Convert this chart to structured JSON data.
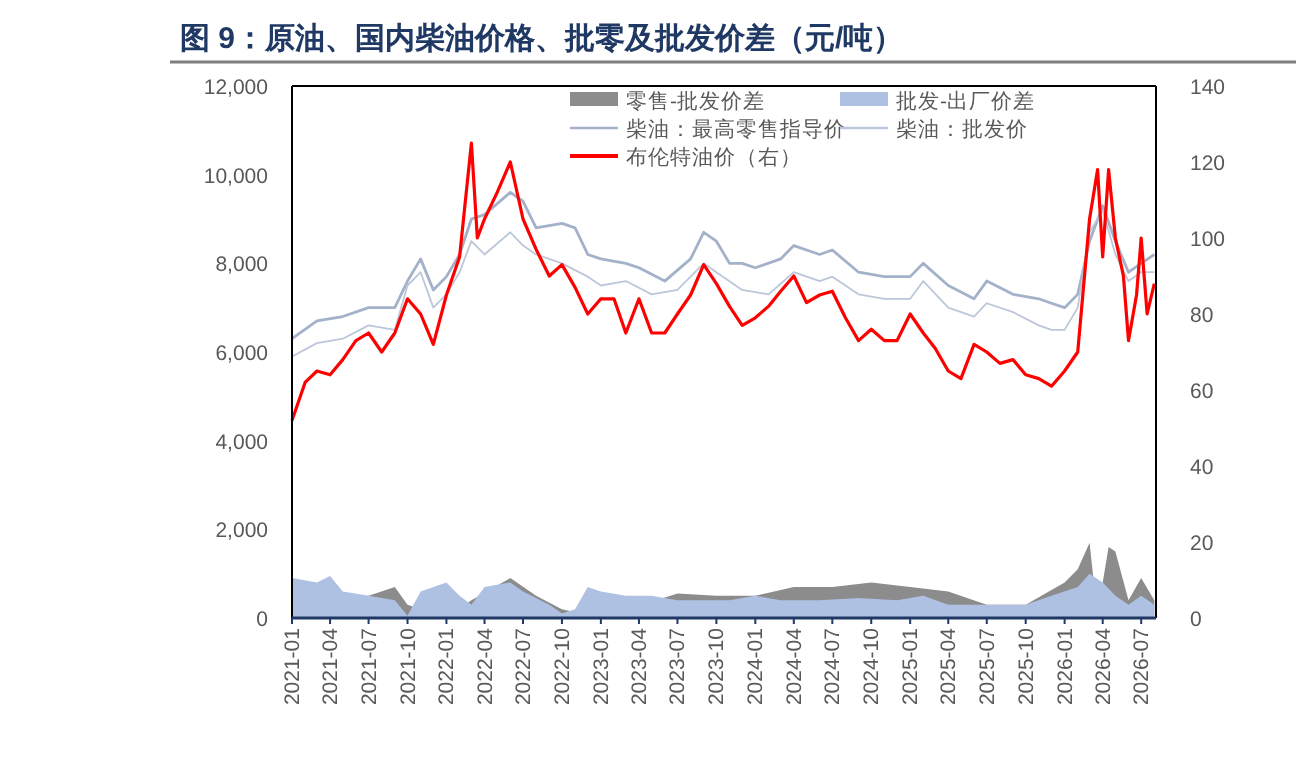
{
  "chart_data": {
    "type": "line",
    "title": "图 9：原油、国内柴油价格、批零及批发价差（元/吨）",
    "xlim": [
      "2021-01-01",
      "2026-08-05"
    ],
    "xticks": [
      "2021-01",
      "2021-04",
      "2021-07",
      "2021-10",
      "2022-01",
      "2022-04",
      "2022-07",
      "2022-10",
      "2023-01",
      "2023-04",
      "2023-07",
      "2023-10",
      "2024-01",
      "2024-04",
      "2024-07",
      "2024-10",
      "2025-01",
      "2025-04",
      "2025-07",
      "2025-10",
      "2026-01",
      "2026-04",
      "2026-07"
    ],
    "ylim": [
      0,
      12000
    ],
    "yticks": [
      {
        "value": 0,
        "label": "0"
      },
      {
        "value": 2000,
        "label": "2,000"
      },
      {
        "value": 4000,
        "label": "4,000"
      },
      {
        "value": 6000,
        "label": "6,000"
      },
      {
        "value": 8000,
        "label": "8,000"
      },
      {
        "value": 10000,
        "label": "10,000"
      },
      {
        "value": 12000,
        "label": "12,000"
      }
    ],
    "y2lim": [
      0,
      140
    ],
    "y2ticks": [
      0,
      20,
      40,
      60,
      80,
      100,
      120,
      140
    ],
    "grid": false,
    "legend": "top",
    "series": [
      {
        "name": "零售-批发价差",
        "type": "area",
        "color": "#8c8c8c",
        "x": [
          "2021-01",
          "2021-07",
          "2021-09",
          "2021-10",
          "2022-01",
          "2022-03",
          "2022-06",
          "2022-08",
          "2022-10",
          "2023-01",
          "2023-07",
          "2023-10",
          "2024-01",
          "2024-04",
          "2024-07",
          "2024-10",
          "2025-01",
          "2025-04",
          "2025-07",
          "2025-10",
          "2026-01",
          "2026-02",
          "2026-03",
          "2026-03-20",
          "2026-04",
          "2026-04-15",
          "2026-05",
          "2026-06",
          "2026-07",
          "2026-08"
        ],
        "values": [
          300,
          500,
          700,
          300,
          null,
          400,
          900,
          500,
          200,
          null,
          550,
          500,
          500,
          700,
          700,
          800,
          700,
          600,
          300,
          300,
          800,
          1100,
          1700,
          null,
          800,
          1600,
          1500,
          400,
          900,
          400
        ]
      },
      {
        "name": "批发-出厂价差",
        "type": "area",
        "color": "#aec1e3",
        "x": [
          "2021-01",
          "2021-03",
          "2021-04",
          "2021-05",
          "2021-07",
          "2021-09",
          "2021-10",
          "2021-11",
          "2022-01",
          "2022-02",
          "2022-03",
          "2022-04",
          "2022-06",
          "2022-07",
          "2022-09",
          "2022-10",
          "2022-11",
          "2022-12",
          "2023-01",
          "2023-03",
          "2023-05",
          "2023-07",
          "2023-09",
          "2023-11",
          "2024-01",
          "2024-03",
          "2024-06",
          "2024-09",
          "2024-12",
          "2025-02",
          "2025-04",
          "2025-06",
          "2025-08",
          "2025-10",
          "2025-12",
          "2026-02",
          "2026-03",
          "2026-04",
          "2026-05",
          "2026-06",
          "2026-07",
          "2026-08"
        ],
        "values": [
          900,
          800,
          950,
          600,
          500,
          400,
          50,
          600,
          800,
          500,
          300,
          700,
          800,
          600,
          300,
          100,
          200,
          700,
          600,
          500,
          500,
          400,
          400,
          400,
          500,
          400,
          400,
          450,
          400,
          500,
          300,
          300,
          300,
          300,
          500,
          700,
          1000,
          800,
          500,
          300,
          500,
          300
        ]
      },
      {
        "name": "柴油：最高零售指导价",
        "type": "line",
        "color": "#a3b1c9",
        "x": [
          "2021-01",
          "2021-03",
          "2021-05",
          "2021-07",
          "2021-09",
          "2021-10",
          "2021-11",
          "2021-12",
          "2022-01",
          "2022-02",
          "2022-03",
          "2022-04",
          "2022-06",
          "2022-07",
          "2022-08",
          "2022-10",
          "2022-11",
          "2022-12",
          "2023-01",
          "2023-03",
          "2023-04",
          "2023-06",
          "2023-08",
          "2023-09",
          "2023-10",
          "2023-11",
          "2023-12",
          "2024-01",
          "2024-03",
          "2024-04",
          "2024-06",
          "2024-07",
          "2024-09",
          "2024-11",
          "2025-01",
          "2025-02",
          "2025-04",
          "2025-06",
          "2025-07",
          "2025-09",
          "2025-11",
          "2025-12",
          "2026-01",
          "2026-02",
          "2026-03",
          "2026-04",
          "2026-05",
          "2026-06",
          "2026-07",
          "2026-08"
        ],
        "values": [
          6300,
          6700,
          6800,
          7000,
          7000,
          7600,
          8100,
          7400,
          7700,
          8200,
          9000,
          9100,
          9600,
          9400,
          8800,
          8900,
          8800,
          8200,
          8100,
          8000,
          7900,
          7600,
          8100,
          8700,
          8500,
          8000,
          8000,
          7900,
          8100,
          8400,
          8200,
          8300,
          7800,
          7700,
          7700,
          8000,
          7500,
          7200,
          7600,
          7300,
          7200,
          7100,
          7000,
          7300,
          8500,
          9300,
          8500,
          7800,
          8000,
          8200
        ]
      },
      {
        "name": "柴油：批发价",
        "type": "line",
        "color": "#bcc7da",
        "x": [
          "2021-01",
          "2021-03",
          "2021-05",
          "2021-07",
          "2021-09",
          "2021-10",
          "2021-11",
          "2021-12",
          "2022-01",
          "2022-02",
          "2022-03",
          "2022-04",
          "2022-06",
          "2022-07",
          "2022-08",
          "2022-10",
          "2022-12",
          "2023-01",
          "2023-03",
          "2023-05",
          "2023-07",
          "2023-09",
          "2023-10",
          "2023-12",
          "2024-02",
          "2024-04",
          "2024-06",
          "2024-07",
          "2024-09",
          "2024-11",
          "2025-01",
          "2025-02",
          "2025-04",
          "2025-06",
          "2025-07",
          "2025-09",
          "2025-11",
          "2025-12",
          "2026-01",
          "2026-02",
          "2026-03",
          "2026-04",
          "2026-05",
          "2026-06",
          "2026-07",
          "2026-08"
        ],
        "values": [
          5900,
          6200,
          6300,
          6600,
          6500,
          7500,
          7800,
          7000,
          7300,
          7800,
          8500,
          8200,
          8700,
          8400,
          8200,
          8000,
          7700,
          7500,
          7600,
          7300,
          7400,
          8000,
          7800,
          7400,
          7300,
          7800,
          7600,
          7700,
          7300,
          7200,
          7200,
          7600,
          7000,
          6800,
          7100,
          6900,
          6600,
          6500,
          6500,
          7000,
          8700,
          9200,
          8200,
          7600,
          7800,
          7800
        ]
      },
      {
        "name": "布伦特油价（右）",
        "type": "line",
        "axis": "y2",
        "color": "#ff0000",
        "x": [
          "2021-01",
          "2021-02",
          "2021-03",
          "2021-04",
          "2021-05",
          "2021-06",
          "2021-07",
          "2021-08",
          "2021-09",
          "2021-10",
          "2021-11",
          "2021-12",
          "2022-01",
          "2022-02",
          "2022-03",
          "2022-03-15",
          "2022-04",
          "2022-05",
          "2022-06",
          "2022-07",
          "2022-08",
          "2022-09",
          "2022-10",
          "2022-11",
          "2022-12",
          "2023-01",
          "2023-02",
          "2023-03",
          "2023-04",
          "2023-05",
          "2023-06",
          "2023-07",
          "2023-08",
          "2023-09",
          "2023-10",
          "2023-11",
          "2023-12",
          "2024-01",
          "2024-02",
          "2024-03",
          "2024-04",
          "2024-05",
          "2024-06",
          "2024-07",
          "2024-08",
          "2024-09",
          "2024-10",
          "2024-11",
          "2024-12",
          "2025-01",
          "2025-02",
          "2025-03",
          "2025-04",
          "2025-05",
          "2025-06",
          "2025-07",
          "2025-08",
          "2025-09",
          "2025-10",
          "2025-11",
          "2025-12",
          "2026-01",
          "2026-02",
          "2026-03",
          "2026-03-20",
          "2026-04",
          "2026-04-15",
          "2026-05",
          "2026-05-20",
          "2026-06",
          "2026-06-20",
          "2026-07",
          "2026-07-15",
          "2026-08"
        ],
        "values": [
          52,
          62,
          65,
          64,
          68,
          73,
          75,
          70,
          75,
          84,
          80,
          72,
          85,
          95,
          125,
          100,
          105,
          112,
          120,
          105,
          97,
          90,
          93,
          87,
          80,
          84,
          84,
          75,
          84,
          75,
          75,
          80,
          85,
          93,
          88,
          82,
          77,
          79,
          82,
          86,
          90,
          83,
          85,
          86,
          79,
          73,
          76,
          73,
          73,
          80,
          75,
          71,
          65,
          63,
          72,
          70,
          67,
          68,
          64,
          63,
          61,
          65,
          70,
          105,
          118,
          95,
          118,
          100,
          90,
          73,
          85,
          100,
          80,
          88
        ]
      }
    ]
  }
}
